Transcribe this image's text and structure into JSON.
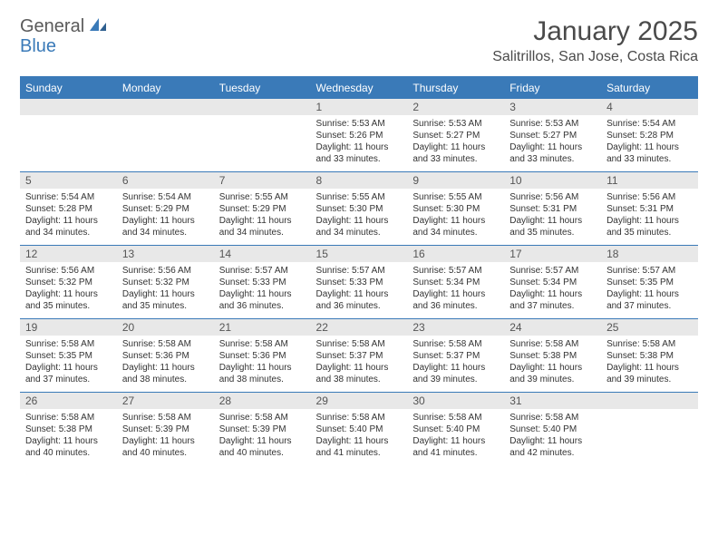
{
  "logo": {
    "text1": "General",
    "text2": "Blue"
  },
  "title": "January 2025",
  "location": "Salitrillos, San Jose, Costa Rica",
  "colors": {
    "header_bg": "#3a7ab8",
    "daynum_bg": "#e8e8e8",
    "text": "#333333",
    "title_text": "#4a4a4a",
    "logo_gray": "#5a5a5a",
    "logo_blue": "#3a7ab8",
    "border": "#3a7ab8",
    "background": "#ffffff"
  },
  "typography": {
    "title_fontsize": 30,
    "location_fontsize": 16,
    "header_fontsize": 12,
    "daynum_fontsize": 12,
    "content_fontsize": 10
  },
  "days_of_week": [
    "Sunday",
    "Monday",
    "Tuesday",
    "Wednesday",
    "Thursday",
    "Friday",
    "Saturday"
  ],
  "weeks": [
    [
      null,
      null,
      null,
      {
        "n": "1",
        "sunrise": "5:53 AM",
        "sunset": "5:26 PM",
        "daylight": "11 hours and 33 minutes."
      },
      {
        "n": "2",
        "sunrise": "5:53 AM",
        "sunset": "5:27 PM",
        "daylight": "11 hours and 33 minutes."
      },
      {
        "n": "3",
        "sunrise": "5:53 AM",
        "sunset": "5:27 PM",
        "daylight": "11 hours and 33 minutes."
      },
      {
        "n": "4",
        "sunrise": "5:54 AM",
        "sunset": "5:28 PM",
        "daylight": "11 hours and 33 minutes."
      }
    ],
    [
      {
        "n": "5",
        "sunrise": "5:54 AM",
        "sunset": "5:28 PM",
        "daylight": "11 hours and 34 minutes."
      },
      {
        "n": "6",
        "sunrise": "5:54 AM",
        "sunset": "5:29 PM",
        "daylight": "11 hours and 34 minutes."
      },
      {
        "n": "7",
        "sunrise": "5:55 AM",
        "sunset": "5:29 PM",
        "daylight": "11 hours and 34 minutes."
      },
      {
        "n": "8",
        "sunrise": "5:55 AM",
        "sunset": "5:30 PM",
        "daylight": "11 hours and 34 minutes."
      },
      {
        "n": "9",
        "sunrise": "5:55 AM",
        "sunset": "5:30 PM",
        "daylight": "11 hours and 34 minutes."
      },
      {
        "n": "10",
        "sunrise": "5:56 AM",
        "sunset": "5:31 PM",
        "daylight": "11 hours and 35 minutes."
      },
      {
        "n": "11",
        "sunrise": "5:56 AM",
        "sunset": "5:31 PM",
        "daylight": "11 hours and 35 minutes."
      }
    ],
    [
      {
        "n": "12",
        "sunrise": "5:56 AM",
        "sunset": "5:32 PM",
        "daylight": "11 hours and 35 minutes."
      },
      {
        "n": "13",
        "sunrise": "5:56 AM",
        "sunset": "5:32 PM",
        "daylight": "11 hours and 35 minutes."
      },
      {
        "n": "14",
        "sunrise": "5:57 AM",
        "sunset": "5:33 PM",
        "daylight": "11 hours and 36 minutes."
      },
      {
        "n": "15",
        "sunrise": "5:57 AM",
        "sunset": "5:33 PM",
        "daylight": "11 hours and 36 minutes."
      },
      {
        "n": "16",
        "sunrise": "5:57 AM",
        "sunset": "5:34 PM",
        "daylight": "11 hours and 36 minutes."
      },
      {
        "n": "17",
        "sunrise": "5:57 AM",
        "sunset": "5:34 PM",
        "daylight": "11 hours and 37 minutes."
      },
      {
        "n": "18",
        "sunrise": "5:57 AM",
        "sunset": "5:35 PM",
        "daylight": "11 hours and 37 minutes."
      }
    ],
    [
      {
        "n": "19",
        "sunrise": "5:58 AM",
        "sunset": "5:35 PM",
        "daylight": "11 hours and 37 minutes."
      },
      {
        "n": "20",
        "sunrise": "5:58 AM",
        "sunset": "5:36 PM",
        "daylight": "11 hours and 38 minutes."
      },
      {
        "n": "21",
        "sunrise": "5:58 AM",
        "sunset": "5:36 PM",
        "daylight": "11 hours and 38 minutes."
      },
      {
        "n": "22",
        "sunrise": "5:58 AM",
        "sunset": "5:37 PM",
        "daylight": "11 hours and 38 minutes."
      },
      {
        "n": "23",
        "sunrise": "5:58 AM",
        "sunset": "5:37 PM",
        "daylight": "11 hours and 39 minutes."
      },
      {
        "n": "24",
        "sunrise": "5:58 AM",
        "sunset": "5:38 PM",
        "daylight": "11 hours and 39 minutes."
      },
      {
        "n": "25",
        "sunrise": "5:58 AM",
        "sunset": "5:38 PM",
        "daylight": "11 hours and 39 minutes."
      }
    ],
    [
      {
        "n": "26",
        "sunrise": "5:58 AM",
        "sunset": "5:38 PM",
        "daylight": "11 hours and 40 minutes."
      },
      {
        "n": "27",
        "sunrise": "5:58 AM",
        "sunset": "5:39 PM",
        "daylight": "11 hours and 40 minutes."
      },
      {
        "n": "28",
        "sunrise": "5:58 AM",
        "sunset": "5:39 PM",
        "daylight": "11 hours and 40 minutes."
      },
      {
        "n": "29",
        "sunrise": "5:58 AM",
        "sunset": "5:40 PM",
        "daylight": "11 hours and 41 minutes."
      },
      {
        "n": "30",
        "sunrise": "5:58 AM",
        "sunset": "5:40 PM",
        "daylight": "11 hours and 41 minutes."
      },
      {
        "n": "31",
        "sunrise": "5:58 AM",
        "sunset": "5:40 PM",
        "daylight": "11 hours and 42 minutes."
      },
      null
    ]
  ],
  "labels": {
    "sunrise": "Sunrise:",
    "sunset": "Sunset:",
    "daylight": "Daylight:"
  }
}
